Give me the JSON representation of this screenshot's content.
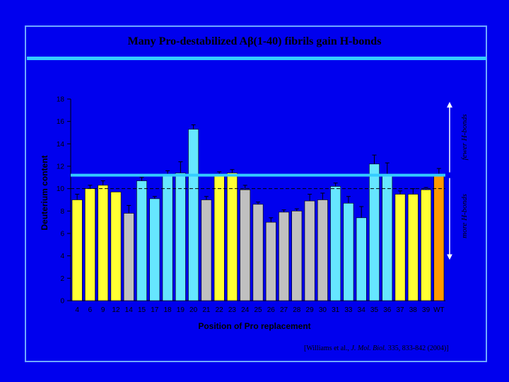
{
  "slide": {
    "title_main": "Many Pro-destabilized A",
    "title_beta": "β",
    "title_rest": "(1-40) fibrils gain H-bonds",
    "citation_open": "[Williams et al., ",
    "citation_journal": "J. Mol. Biol.",
    "citation_rest": " 335, 833-842 (2004)]"
  },
  "colors": {
    "background": "#0000ee",
    "yellow": "#ffff33",
    "gray": "#c0c0c0",
    "cyan": "#66e6ff",
    "orange": "#ff9900",
    "reference_line": "#33ccff"
  },
  "chart_data": {
    "type": "bar",
    "title": "Many Pro-destabilized Aβ(1-40) fibrils gain H-bonds",
    "xlabel": "Position of Pro replacement",
    "ylabel": "Deuterium content",
    "ylim": [
      0,
      18
    ],
    "yticks": [
      0,
      2,
      4,
      6,
      8,
      10,
      12,
      14,
      16,
      18
    ],
    "categories": [
      "4",
      "6",
      "9",
      "12",
      "14",
      "15",
      "17",
      "18",
      "19",
      "20",
      "21",
      "22",
      "23",
      "24",
      "25",
      "26",
      "27",
      "28",
      "29",
      "30",
      "31",
      "33",
      "34",
      "35",
      "36",
      "37",
      "38",
      "39",
      "WT"
    ],
    "values": [
      9.0,
      10.0,
      10.3,
      9.7,
      7.8,
      10.7,
      9.1,
      11.2,
      11.4,
      15.3,
      9.0,
      11.3,
      11.4,
      9.9,
      8.6,
      7.0,
      7.9,
      8.0,
      8.9,
      9.0,
      10.2,
      8.7,
      7.4,
      12.2,
      11.3,
      9.5,
      9.5,
      9.9,
      11.3
    ],
    "errors": [
      0.5,
      0.3,
      0.4,
      0.0,
      0.7,
      0.3,
      0.2,
      0.4,
      1.0,
      0.4,
      0.3,
      0.2,
      0.3,
      0.4,
      0.2,
      0.4,
      0.2,
      0.2,
      0.6,
      0.6,
      0.3,
      0.6,
      1.0,
      0.8,
      1.0,
      0.3,
      0.5,
      0.2,
      0.5
    ],
    "bar_colors": [
      "yellow",
      "yellow",
      "yellow",
      "yellow",
      "gray",
      "cyan",
      "cyan",
      "cyan",
      "cyan",
      "cyan",
      "gray",
      "yellow",
      "yellow",
      "gray",
      "gray",
      "gray",
      "gray",
      "gray",
      "gray",
      "gray",
      "cyan",
      "cyan",
      "cyan",
      "cyan",
      "cyan",
      "yellow",
      "yellow",
      "yellow",
      "orange"
    ],
    "reference_line_cyan": 11.2,
    "reference_line_dashed": 10.0,
    "annotations": {
      "upper": "fewer H-bonds",
      "lower": "more H-bonds"
    },
    "grid": false
  }
}
